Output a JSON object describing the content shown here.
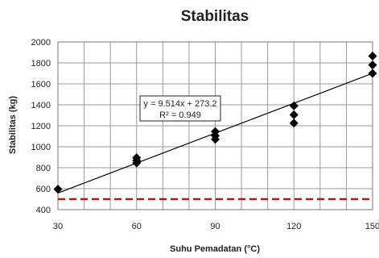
{
  "chart_data": {
    "type": "scatter",
    "title": "Stabilitas",
    "xlabel": "Suhu Pemadatan (°C)",
    "ylabel": "Stabilitas (kg)",
    "xlim": [
      30,
      150
    ],
    "ylim": [
      400,
      2000
    ],
    "x_ticks": [
      "30",
      "60",
      "90",
      "120",
      "150"
    ],
    "y_ticks": [
      "400",
      "600",
      "800",
      "1000",
      "1200",
      "1400",
      "1600",
      "1800",
      "2000"
    ],
    "grid": true,
    "series": [
      {
        "marker": "diamond",
        "color": "#000000",
        "points": [
          {
            "x": 30,
            "y": 595
          },
          {
            "x": 60,
            "y": 895
          },
          {
            "x": 60,
            "y": 870
          },
          {
            "x": 60,
            "y": 845
          },
          {
            "x": 90,
            "y": 1145
          },
          {
            "x": 90,
            "y": 1105
          },
          {
            "x": 90,
            "y": 1070
          },
          {
            "x": 120,
            "y": 1390
          },
          {
            "x": 120,
            "y": 1305
          },
          {
            "x": 120,
            "y": 1225
          },
          {
            "x": 150,
            "y": 1865
          },
          {
            "x": 150,
            "y": 1780
          },
          {
            "x": 150,
            "y": 1700
          }
        ]
      }
    ],
    "trendline": {
      "slope": 9.514,
      "intercept": 273.2,
      "color": "#000000",
      "equation_label": "y = 9.514x + 273.2",
      "r2_label": "R² = 0.949"
    },
    "reference_line": {
      "y": 500,
      "color": "#b01818",
      "style": "dashed"
    }
  }
}
